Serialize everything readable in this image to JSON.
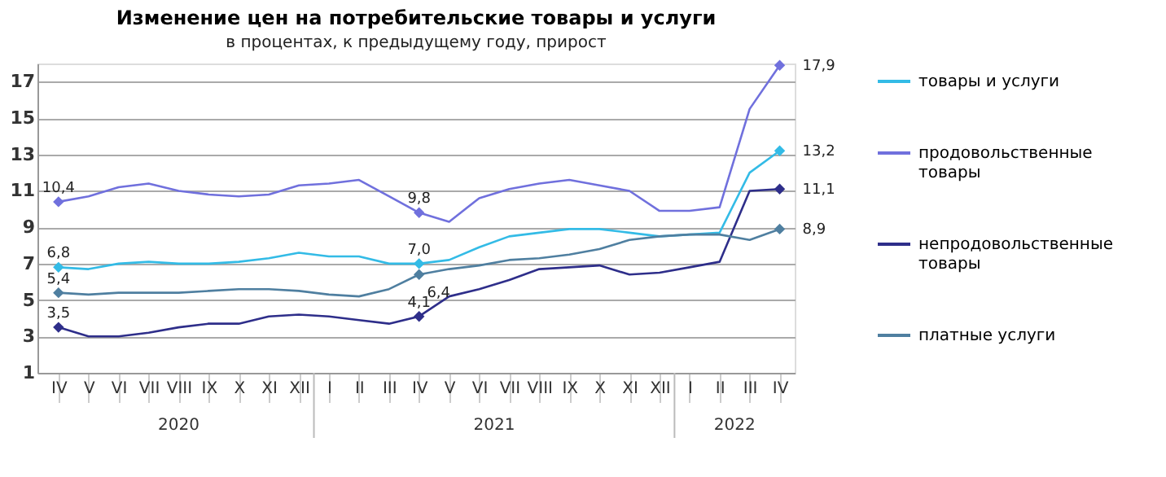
{
  "chart_data": {
    "type": "line",
    "title": "Изменение цен на потребительские  товары и услуги",
    "subtitle": "в процентах, к предыдущему году, прирост",
    "categories": [
      "IV",
      "V",
      "VI",
      "VII",
      "VIII",
      "IX",
      "X",
      "XI",
      "XII",
      "I",
      "II",
      "III",
      "IV",
      "V",
      "VI",
      "VII",
      "VIII",
      "IX",
      "X",
      "XI",
      "XII",
      "I",
      "II",
      "III",
      "IV"
    ],
    "annotations": [
      "2020",
      "2021",
      "2022"
    ],
    "ylim": [
      1,
      18
    ],
    "yticks": [
      1,
      3,
      5,
      7,
      9,
      11,
      13,
      15,
      17
    ],
    "grid": "y",
    "legend": "right",
    "line_style": "solid",
    "series": [
      {
        "name": "товары и  услуги",
        "color": "#33bbe6",
        "values": [
          6.8,
          6.7,
          7.0,
          7.1,
          7.0,
          7.0,
          7.1,
          7.3,
          7.6,
          7.4,
          7.4,
          7.0,
          7.0,
          7.2,
          7.9,
          8.5,
          8.7,
          8.9,
          8.9,
          8.7,
          8.5,
          8.6,
          8.7,
          12.0,
          13.2
        ],
        "value_labels": [
          "6,8",
          null,
          null,
          null,
          null,
          null,
          null,
          null,
          null,
          null,
          null,
          null,
          "7,0",
          null,
          null,
          null,
          null,
          null,
          null,
          null,
          null,
          null,
          null,
          null,
          "13,2"
        ]
      },
      {
        "name": "продовольственные товары",
        "color": "#7070dd",
        "values": [
          10.4,
          10.7,
          11.2,
          11.4,
          11.0,
          10.8,
          10.7,
          10.8,
          11.3,
          11.4,
          11.6,
          10.7,
          9.8,
          9.3,
          10.6,
          11.1,
          11.4,
          11.6,
          11.3,
          11.0,
          9.9,
          9.9,
          10.1,
          15.5,
          17.9
        ],
        "value_labels": [
          "10,4",
          null,
          null,
          null,
          null,
          null,
          null,
          null,
          null,
          null,
          null,
          null,
          "9,8",
          null,
          null,
          null,
          null,
          null,
          null,
          null,
          null,
          null,
          null,
          null,
          "17,9"
        ]
      },
      {
        "name": "непродовольственные товары",
        "color": "#2e2e8a",
        "values": [
          3.5,
          3.0,
          3.0,
          3.2,
          3.5,
          3.7,
          3.7,
          4.1,
          4.2,
          4.1,
          3.9,
          3.7,
          4.1,
          5.2,
          5.6,
          6.1,
          6.7,
          6.8,
          6.9,
          6.4,
          6.5,
          6.8,
          7.1,
          11.0,
          11.1
        ],
        "value_labels": [
          "3,5",
          null,
          null,
          null,
          null,
          null,
          null,
          null,
          null,
          null,
          null,
          null,
          "4,1",
          null,
          null,
          null,
          null,
          null,
          null,
          null,
          null,
          null,
          null,
          null,
          "11,1"
        ]
      },
      {
        "name": "платные услуги",
        "color": "#4f7fa0",
        "values": [
          5.4,
          5.3,
          5.4,
          5.4,
          5.4,
          5.5,
          5.6,
          5.6,
          5.5,
          5.3,
          5.2,
          5.6,
          6.4,
          6.7,
          6.9,
          7.2,
          7.3,
          7.5,
          7.8,
          8.3,
          8.5,
          8.6,
          8.6,
          8.3,
          8.9
        ],
        "value_labels": [
          "5,4",
          null,
          null,
          null,
          null,
          null,
          null,
          null,
          null,
          null,
          null,
          null,
          "6,4",
          null,
          null,
          null,
          null,
          null,
          null,
          null,
          null,
          null,
          null,
          null,
          "8,9"
        ]
      }
    ]
  }
}
